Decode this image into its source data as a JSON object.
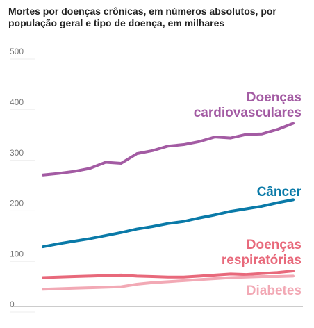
{
  "chart_data": {
    "type": "line",
    "title": "Mortes por doenças crônicas, em números absolutos, por população geral e tipo de doença, em milhares",
    "categories": [
      null,
      null,
      null,
      null,
      null,
      null,
      null,
      null,
      null,
      null,
      null,
      null,
      null,
      null,
      null,
      null,
      null
    ],
    "series": [
      {
        "name": "Doenças cardiovasculares",
        "color": "#a35ba3",
        "values": [
          260,
          263,
          267,
          273,
          285,
          283,
          302,
          308,
          317,
          320,
          326,
          335,
          333,
          340,
          341,
          350,
          362
        ]
      },
      {
        "name": "Câncer",
        "color": "#0a7aa8",
        "values": [
          118,
          124,
          129,
          134,
          140,
          146,
          153,
          158,
          164,
          168,
          175,
          181,
          188,
          193,
          198,
          205,
          211
        ]
      },
      {
        "name": "Doenças respiratórias",
        "color": "#e8697b",
        "values": [
          57,
          58,
          59,
          60,
          61,
          62,
          60,
          59,
          58,
          58,
          60,
          62,
          64,
          63,
          65,
          67,
          70
        ]
      },
      {
        "name": "Diabetes",
        "color": "#f2a9b5",
        "values": [
          34,
          35,
          36,
          37,
          38,
          39,
          44,
          47,
          49,
          51,
          53,
          55,
          57,
          58,
          59,
          59,
          60
        ]
      }
    ],
    "ylim": [
      0,
      500
    ],
    "yticks": [
      0,
      100,
      200,
      300,
      400,
      500
    ],
    "grid": false
  }
}
